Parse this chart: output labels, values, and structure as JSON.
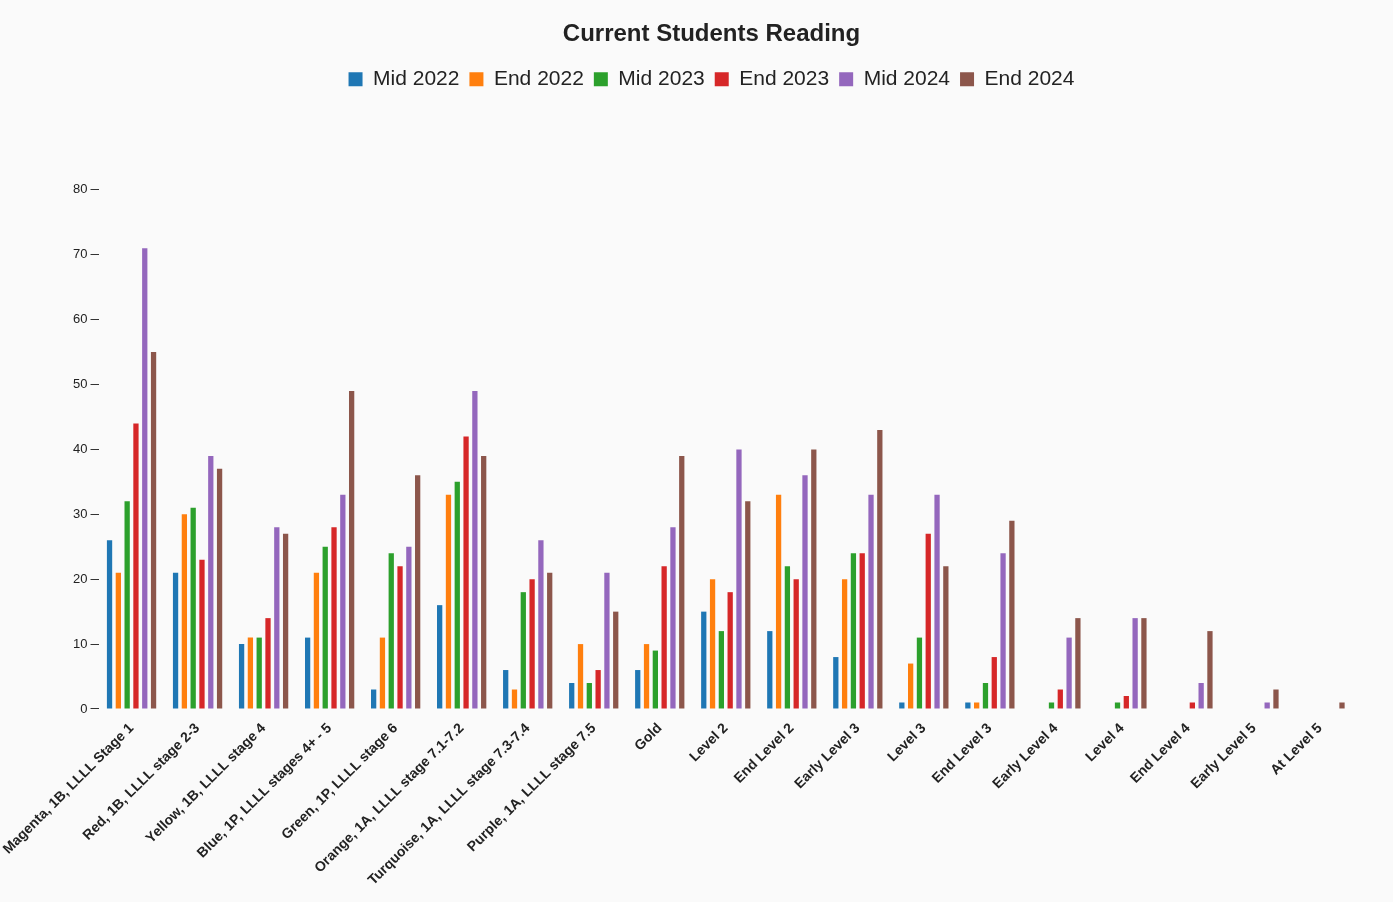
{
  "chart_data": {
    "type": "bar",
    "title": "Current Students Reading",
    "categories": [
      "Magenta, 1B, LLLL Stage 1",
      "Red, 1B, LLLL stage 2-3",
      "Yellow, 1B, LLLL stage 4",
      "Blue, 1P, LLLL stages 4+ - 5",
      "Green, 1P, LLLL stage 6",
      "Orange, 1A, LLLL stage 7.1-7.2",
      "Turquoise, 1A, LLLL stage 7.3-7.4",
      "Purple, 1A, LLLL stage 7.5",
      "Gold",
      "Level 2",
      "End Level 2",
      "Early Level 3",
      "Level 3",
      "End Level 3",
      "Early Level 4",
      "Level 4",
      "End Level 4",
      "Early Level 5",
      "At Level 5"
    ],
    "series": [
      {
        "name": "Mid 2022",
        "color": "#1f77b4",
        "values": [
          26,
          21,
          10,
          11,
          3,
          16,
          6,
          4,
          6,
          15,
          12,
          8,
          1,
          1,
          0,
          0,
          0,
          0,
          0
        ]
      },
      {
        "name": "End 2022",
        "color": "#ff7f0e",
        "values": [
          21,
          30,
          11,
          21,
          11,
          33,
          3,
          10,
          10,
          20,
          33,
          20,
          7,
          1,
          0,
          0,
          0,
          0,
          0
        ]
      },
      {
        "name": "Mid 2023",
        "color": "#2ca02c",
        "values": [
          32,
          31,
          11,
          25,
          24,
          35,
          18,
          4,
          9,
          12,
          22,
          24,
          11,
          4,
          1,
          1,
          0,
          0,
          0
        ]
      },
      {
        "name": "End 2023",
        "color": "#d62728",
        "values": [
          44,
          23,
          14,
          28,
          22,
          42,
          20,
          6,
          22,
          18,
          20,
          24,
          27,
          8,
          3,
          2,
          1,
          0,
          0
        ]
      },
      {
        "name": "Mid 2024",
        "color": "#9467bd",
        "values": [
          71,
          39,
          28,
          33,
          25,
          49,
          26,
          21,
          28,
          40,
          36,
          33,
          33,
          24,
          11,
          14,
          4,
          1,
          0
        ]
      },
      {
        "name": "End 2024",
        "color": "#8c564b",
        "values": [
          55,
          37,
          27,
          49,
          36,
          39,
          21,
          15,
          39,
          32,
          40,
          43,
          22,
          29,
          14,
          14,
          12,
          3,
          1
        ]
      }
    ],
    "ylim": [
      0,
      80
    ],
    "yticks": [
      0,
      10,
      20,
      30,
      40,
      50,
      60,
      70,
      80
    ],
    "grid": false,
    "legend": "top"
  }
}
